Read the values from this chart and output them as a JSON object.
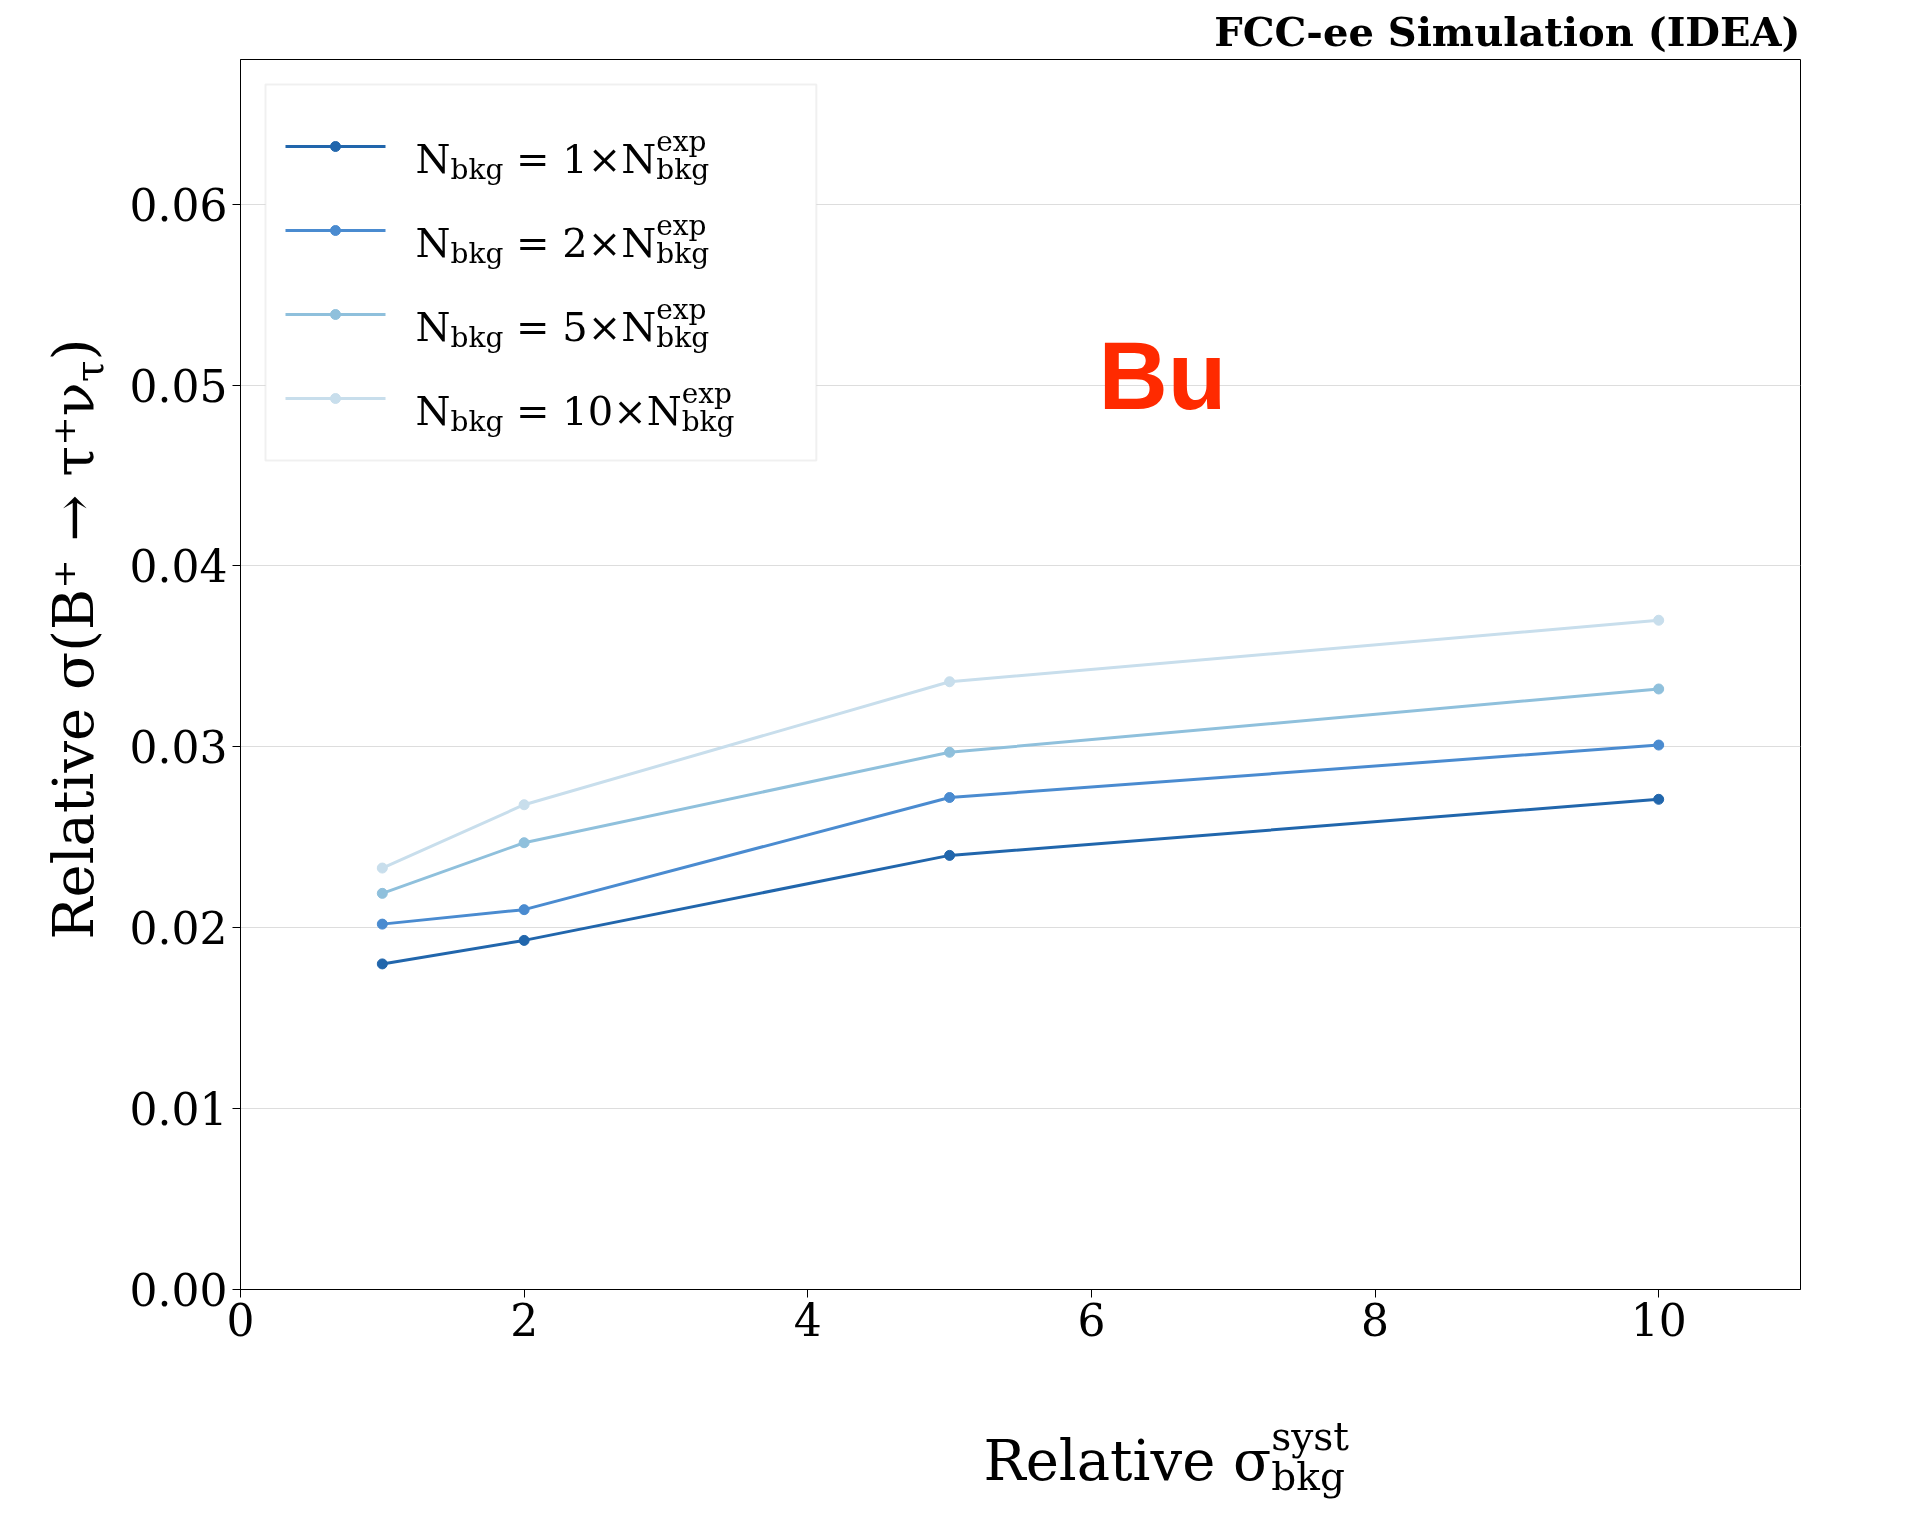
{
  "chart_data": {
    "type": "line",
    "title": "FCC-ee Simulation (IDEA)",
    "xlabel": "Relative σ$_{bkg}$$^{syst}$",
    "ylabel": "Relative σ(B⁺ → τ⁺ν$_{τ}$)",
    "annotations": [
      "Bu"
    ],
    "x": [
      1,
      2,
      5,
      10
    ],
    "series": [
      {
        "name": "N$_{bkg}$ = 1×N$_{bkg}$$^{exp}$",
        "color": "#2166ac",
        "values": [
          0.018,
          0.0193,
          0.024,
          0.0271
        ]
      },
      {
        "name": "N$_{bkg}$ = 2×N$_{bkg}$$^{exp}$",
        "color": "#4a8bd0",
        "values": [
          0.0202,
          0.021,
          0.0272,
          0.0301
        ]
      },
      {
        "name": "N$_{bkg}$ = 5×N$_{bkg}$$^{exp}$",
        "color": "#8fc0dc",
        "values": [
          0.0219,
          0.0247,
          0.0297,
          0.0332
        ]
      },
      {
        "name": "N$_{bkg}$ = 10×N$_{bkg}$$^{exp}$",
        "color": "#c8deec",
        "values": [
          0.0233,
          0.0268,
          0.0336,
          0.037
        ]
      }
    ],
    "xlim": [
      0,
      11
    ],
    "ylim": [
      0,
      0.068
    ],
    "xticks": [
      0,
      2,
      4,
      6,
      8,
      10
    ],
    "yticks": [
      {
        "value": 0,
        "label": "0.00"
      },
      {
        "value": 0.01,
        "label": "0.01"
      },
      {
        "value": 0.02,
        "label": "0.02"
      },
      {
        "value": 0.03,
        "label": "0.03"
      },
      {
        "value": 0.04,
        "label": "0.04"
      },
      {
        "value": 0.05,
        "label": "0.05"
      },
      {
        "value": 0.06,
        "label": "0.06"
      }
    ],
    "grid": "y",
    "legend": "top left",
    "marker": "circle",
    "line_style": "solid"
  }
}
